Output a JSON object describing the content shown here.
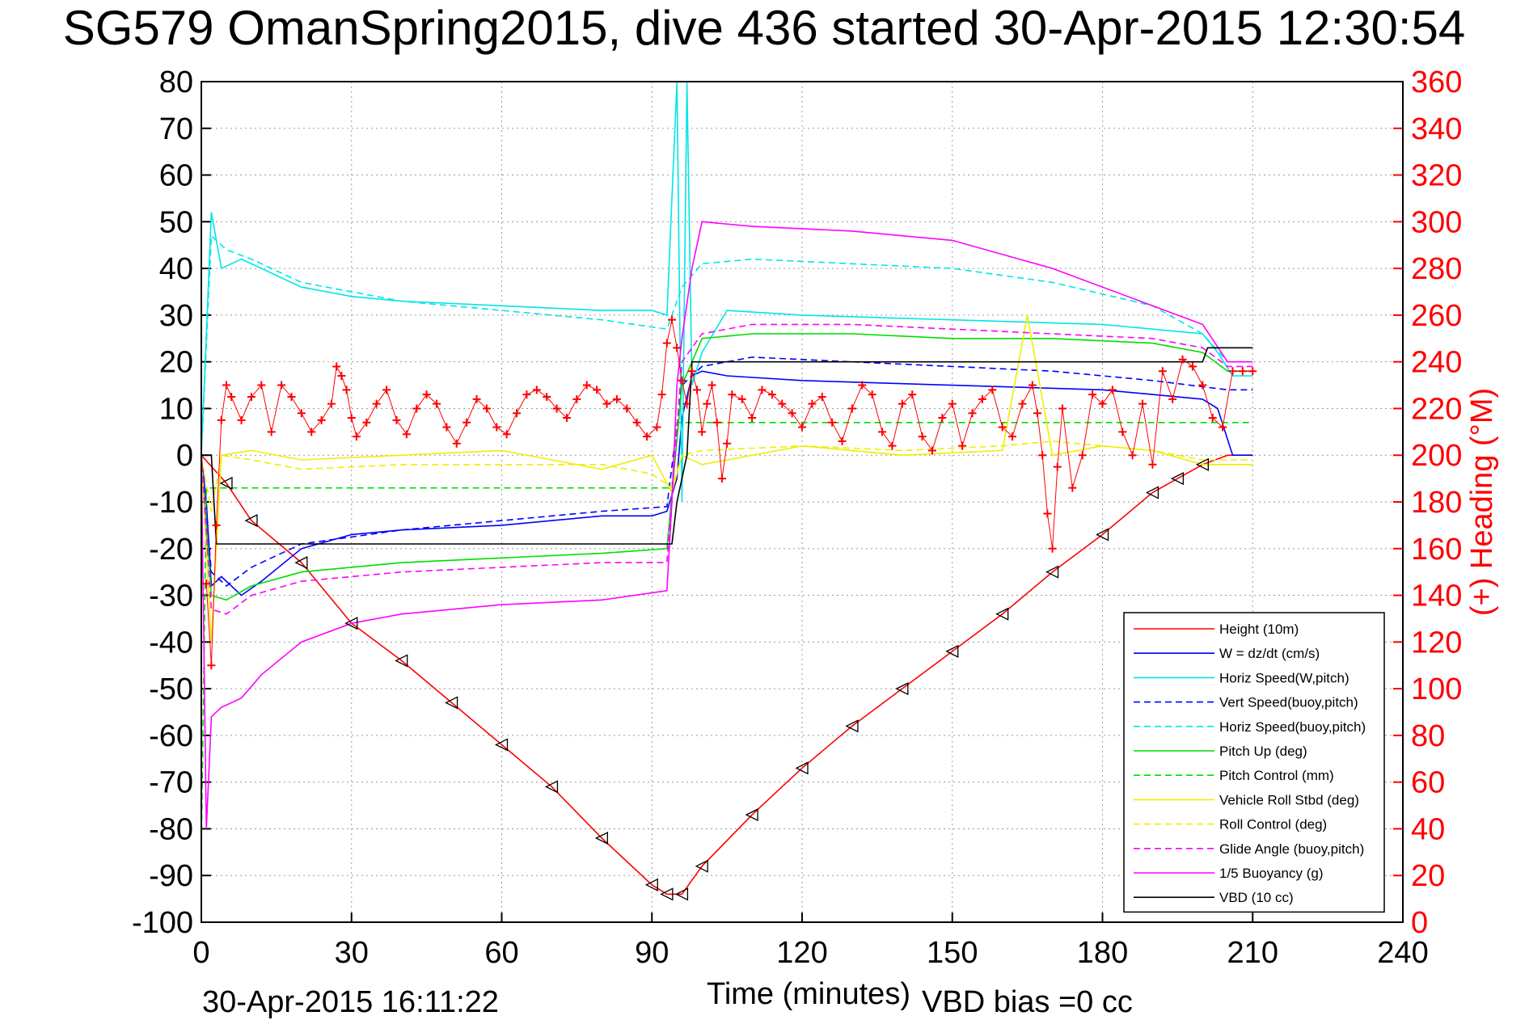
{
  "chart_data": {
    "type": "line",
    "title": "SG579 OmanSpring2015, dive 436 started 30-Apr-2015 12:30:54",
    "xlabel": "Time (minutes)",
    "ylabel_right": "(+) Heading (°M)",
    "xlim": [
      0,
      240
    ],
    "ylim": [
      -100,
      80
    ],
    "ylim_right": [
      0,
      360
    ],
    "x_ticks": [
      "0",
      "30",
      "60",
      "90",
      "120",
      "150",
      "180",
      "210",
      "240"
    ],
    "y_ticks": [
      "80",
      "70",
      "60",
      "50",
      "40",
      "30",
      "20",
      "10",
      "0",
      "-10",
      "-20",
      "-30",
      "-40",
      "-50",
      "-60",
      "-70",
      "-80",
      "-90",
      "-100"
    ],
    "y_right_ticks": [
      "360",
      "340",
      "320",
      "300",
      "280",
      "260",
      "240",
      "220",
      "200",
      "180",
      "160",
      "140",
      "120",
      "100",
      "80",
      "60",
      "40",
      "20",
      "0"
    ],
    "grid": true,
    "legend_position": "lower-right",
    "footer_left": "30-Apr-2015 16:11:22",
    "footer_right": "VBD bias =0 cc",
    "series": [
      {
        "name": "Height (10m)",
        "color": "#ff0000",
        "style": "solid",
        "x": [
          0,
          5,
          10,
          20,
          30,
          40,
          50,
          60,
          70,
          80,
          90,
          93,
          96,
          100,
          110,
          120,
          130,
          140,
          150,
          160,
          170,
          180,
          190,
          195,
          200,
          205,
          210
        ],
        "y": [
          0,
          -6,
          -14,
          -23,
          -36,
          -44,
          -53,
          -62,
          -71,
          -82,
          -92,
          -94,
          -94,
          -88,
          -77,
          -67,
          -58,
          -50,
          -42,
          -34,
          -25,
          -17,
          -8,
          -5,
          -2,
          0,
          0
        ]
      },
      {
        "name": "W = dz/dt (cm/s)",
        "color": "#0000ff",
        "style": "solid",
        "x": [
          0,
          1,
          2,
          4,
          8,
          12,
          20,
          30,
          40,
          60,
          80,
          90,
          93,
          95,
          96,
          98,
          100,
          105,
          120,
          150,
          180,
          190,
          200,
          203,
          206,
          210
        ],
        "y": [
          0,
          -10,
          -28,
          -26,
          -30,
          -27,
          -20,
          -17,
          -16,
          -15,
          -13,
          -13,
          -12,
          -5,
          8,
          17,
          18,
          17,
          16,
          15,
          14,
          13,
          12,
          10,
          0,
          0
        ]
      },
      {
        "name": "Horiz Speed(W,pitch)",
        "color": "#00e6e6",
        "style": "solid",
        "x": [
          0,
          2,
          4,
          8,
          12,
          20,
          30,
          40,
          60,
          80,
          90,
          93,
          95,
          96,
          97,
          98,
          100,
          105,
          120,
          150,
          180,
          190,
          200,
          203,
          206,
          210
        ],
        "y": [
          0,
          52,
          40,
          42,
          40,
          36,
          34,
          33,
          32,
          31,
          31,
          30,
          80,
          -10,
          80,
          15,
          22,
          31,
          30,
          29,
          28,
          27,
          26,
          22,
          17,
          17
        ]
      },
      {
        "name": "Vert Speed(buoy,pitch)",
        "color": "#0000ff",
        "style": "dashed",
        "x": [
          0,
          2,
          5,
          10,
          20,
          40,
          60,
          80,
          93,
          96,
          100,
          110,
          130,
          150,
          170,
          190,
          205,
          210
        ],
        "y": [
          0,
          -25,
          -28,
          -24,
          -19,
          -16,
          -14,
          -12,
          -11,
          15,
          19,
          21,
          20,
          19,
          18,
          16,
          14,
          14
        ]
      },
      {
        "name": "Horiz Speed(buoy,pitch)",
        "color": "#00e6e6",
        "style": "dashed",
        "x": [
          0,
          2,
          5,
          10,
          20,
          40,
          60,
          80,
          93,
          96,
          100,
          110,
          130,
          150,
          170,
          190,
          200,
          205,
          210
        ],
        "y": [
          0,
          47,
          44,
          42,
          37,
          33,
          31,
          29,
          27,
          36,
          41,
          42,
          41,
          40,
          37,
          32,
          26,
          20,
          20
        ]
      },
      {
        "name": "Pitch Up (deg)",
        "color": "#00dd00",
        "style": "solid",
        "x": [
          0,
          2,
          5,
          10,
          20,
          40,
          60,
          80,
          93,
          96,
          100,
          110,
          130,
          150,
          170,
          190,
          200,
          205,
          210
        ],
        "y": [
          0,
          -30,
          -31,
          -28,
          -25,
          -23,
          -22,
          -21,
          -20,
          15,
          25,
          26,
          26,
          25,
          25,
          24,
          22,
          18,
          18
        ]
      },
      {
        "name": "Pitch Control (mm)",
        "color": "#00dd00",
        "style": "dashed",
        "x": [
          0,
          1,
          5,
          94,
          95,
          210
        ],
        "y": [
          -85,
          -7,
          -7,
          -7,
          7,
          7
        ]
      },
      {
        "name": "Vehicle Roll Stbd (deg)",
        "color": "#eeee00",
        "style": "solid",
        "x": [
          0,
          2,
          4,
          10,
          20,
          40,
          60,
          80,
          90,
          94,
          96,
          100,
          120,
          140,
          160,
          165,
          170,
          180,
          190,
          200,
          205,
          210
        ],
        "y": [
          0,
          -40,
          0,
          1,
          -1,
          0,
          1,
          -3,
          0,
          -8,
          0,
          -2,
          2,
          0,
          1,
          30,
          0,
          2,
          1,
          -2,
          -2,
          -2
        ]
      },
      {
        "name": "Roll Control (deg)",
        "color": "#eeee00",
        "style": "dashed",
        "x": [
          0,
          2,
          4,
          10,
          20,
          40,
          60,
          80,
          90,
          94,
          96,
          100,
          120,
          140,
          160,
          170,
          180,
          190,
          200,
          210
        ],
        "y": [
          0,
          -12,
          0,
          -1,
          -3,
          -2,
          -2,
          -2,
          -4,
          -7,
          0,
          1,
          2,
          1,
          2,
          3,
          2,
          1,
          -1,
          -1
        ]
      },
      {
        "name": "Glide Angle (buoy,pitch)",
        "color": "#ff00ff",
        "style": "dashed",
        "x": [
          0,
          2,
          5,
          10,
          20,
          40,
          60,
          80,
          93,
          96,
          100,
          110,
          130,
          150,
          170,
          190,
          200,
          205,
          210
        ],
        "y": [
          0,
          -33,
          -34,
          -30,
          -27,
          -25,
          -24,
          -23,
          -23,
          20,
          26,
          28,
          28,
          27,
          26,
          25,
          23,
          19,
          19
        ]
      },
      {
        "name": "1/5 Buoyancy (g)",
        "color": "#ff00ff",
        "style": "solid",
        "x": [
          0,
          1,
          2,
          4,
          8,
          12,
          20,
          30,
          40,
          60,
          80,
          93,
          94,
          95,
          96,
          98,
          100,
          110,
          130,
          150,
          170,
          190,
          200,
          205,
          210
        ],
        "y": [
          0,
          -80,
          -56,
          -54,
          -52,
          -47,
          -40,
          -36,
          -34,
          -32,
          -31,
          -29,
          -10,
          15,
          25,
          40,
          50,
          49,
          48,
          46,
          40,
          32,
          28,
          20,
          20
        ]
      },
      {
        "name": "VBD (10 cc)",
        "color": "#000000",
        "style": "solid",
        "x": [
          0,
          2,
          3,
          94,
          95,
          97,
          98,
          200,
          201,
          210
        ],
        "y": [
          0,
          0,
          -19,
          -19,
          -10,
          0,
          20,
          20,
          23,
          23
        ]
      }
    ],
    "heading": {
      "name": "Heading (+)",
      "color": "#ff0000",
      "marker": "+",
      "axis": "right",
      "x": [
        1,
        2,
        3,
        4,
        5,
        6,
        8,
        10,
        12,
        14,
        16,
        18,
        20,
        22,
        24,
        26,
        27,
        28,
        29,
        30,
        31,
        33,
        35,
        37,
        39,
        41,
        43,
        45,
        47,
        49,
        51,
        53,
        55,
        57,
        59,
        61,
        63,
        65,
        67,
        69,
        71,
        73,
        75,
        77,
        79,
        81,
        83,
        85,
        87,
        89,
        91,
        92,
        93,
        94,
        95,
        96,
        97,
        98,
        99,
        100,
        101,
        102,
        103,
        104,
        105,
        106,
        108,
        110,
        112,
        114,
        116,
        118,
        120,
        122,
        124,
        126,
        128,
        130,
        132,
        134,
        136,
        138,
        140,
        142,
        144,
        146,
        148,
        150,
        152,
        154,
        156,
        158,
        160,
        162,
        164,
        166,
        167,
        168,
        169,
        170,
        171,
        172,
        174,
        176,
        178,
        180,
        182,
        184,
        186,
        188,
        190,
        192,
        194,
        196,
        198,
        200,
        202,
        204,
        206,
        208,
        210
      ],
      "y": [
        145,
        110,
        170,
        215,
        230,
        225,
        215,
        225,
        230,
        210,
        230,
        225,
        218,
        210,
        215,
        222,
        238,
        234,
        228,
        216,
        208,
        214,
        222,
        228,
        215,
        209,
        220,
        226,
        222,
        212,
        205,
        214,
        224,
        220,
        212,
        209,
        218,
        226,
        228,
        225,
        220,
        216,
        224,
        230,
        228,
        222,
        224,
        220,
        214,
        208,
        212,
        226,
        248,
        258,
        246,
        232,
        222,
        236,
        228,
        210,
        222,
        230,
        214,
        190,
        205,
        226,
        224,
        216,
        228,
        226,
        222,
        218,
        212,
        222,
        225,
        214,
        206,
        220,
        230,
        226,
        210,
        204,
        222,
        226,
        208,
        202,
        216,
        222,
        204,
        218,
        224,
        228,
        212,
        208,
        222,
        230,
        218,
        200,
        175,
        160,
        195,
        220,
        186,
        200,
        226,
        222,
        228,
        210,
        200,
        222,
        196,
        236,
        224,
        241,
        238,
        230,
        216,
        212,
        236,
        236,
        236
      ]
    }
  }
}
